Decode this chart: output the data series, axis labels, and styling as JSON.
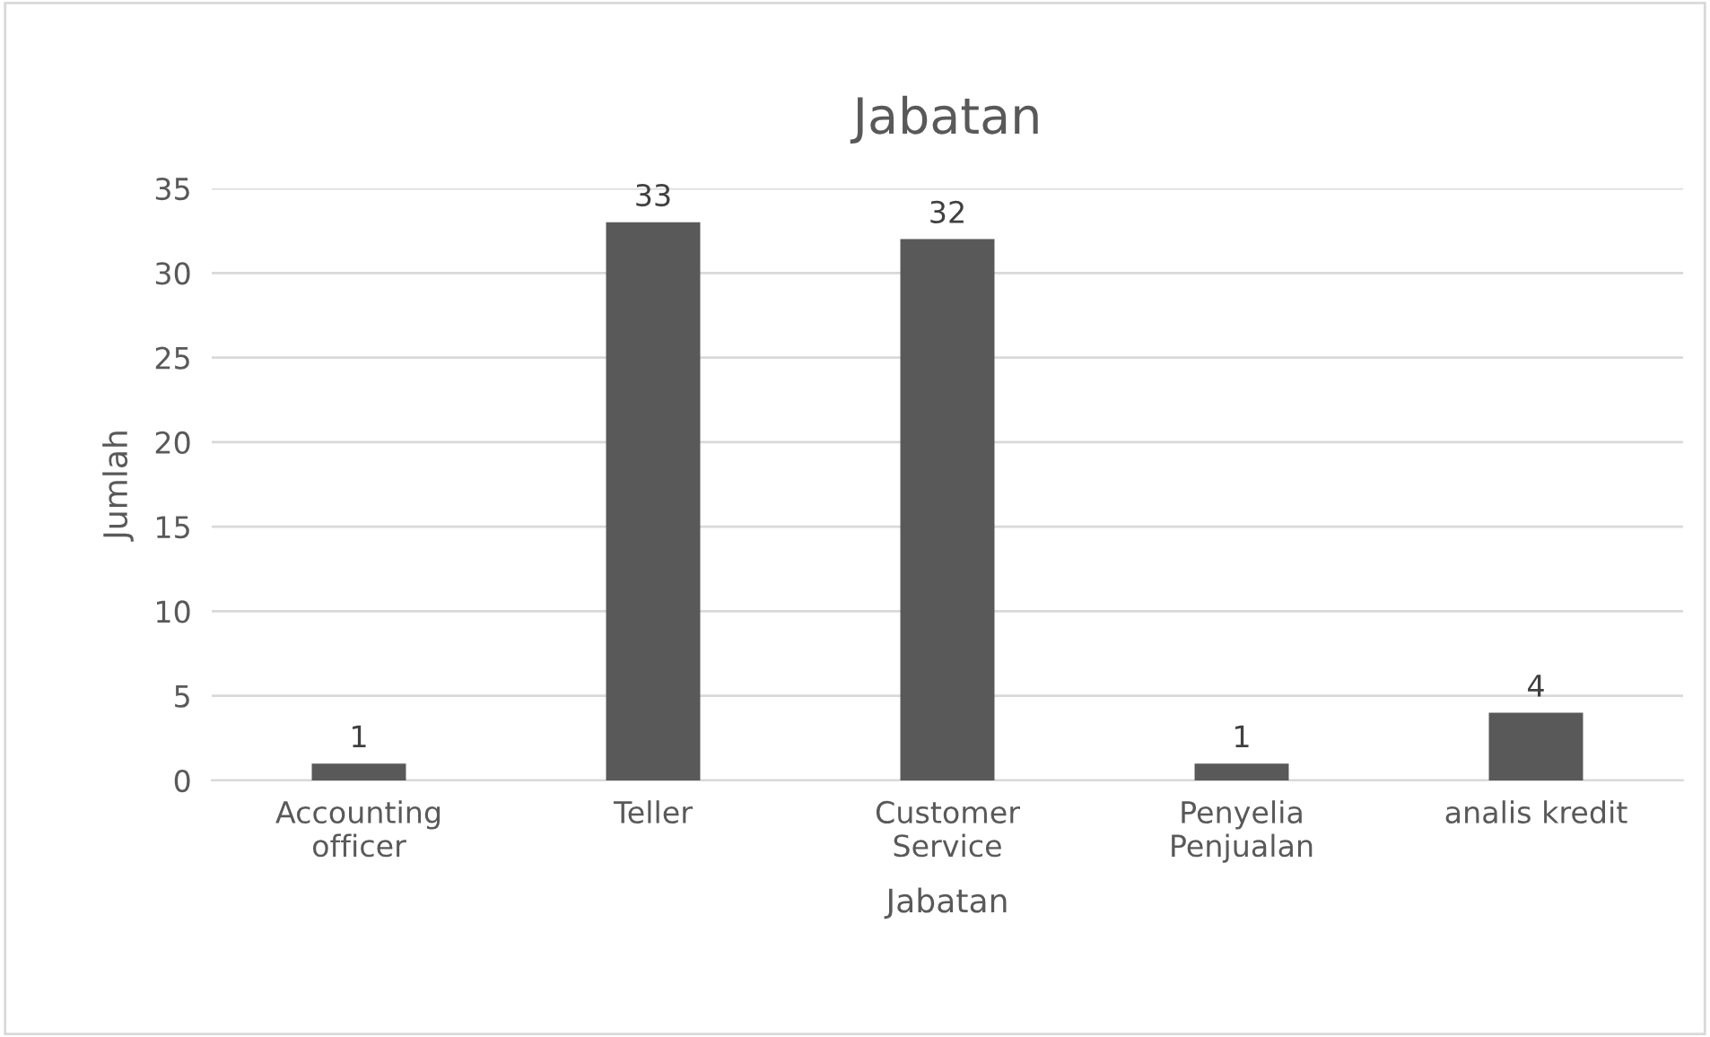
{
  "chart_data": {
    "type": "bar",
    "title": "Jabatan",
    "xlabel": "Jabatan",
    "ylabel": "Jumlah",
    "categories": [
      "Accounting\nofficer",
      "Teller",
      "Customer\nService",
      "Penyelia\nPenjualan",
      "analis kredit"
    ],
    "values": [
      1,
      33,
      32,
      1,
      4
    ],
    "color": "#595959",
    "ylim": [
      0,
      35
    ],
    "yticks": [
      0,
      5,
      10,
      15,
      20,
      25,
      30,
      35
    ],
    "grid": "y",
    "data_labels": true,
    "legend": false
  }
}
